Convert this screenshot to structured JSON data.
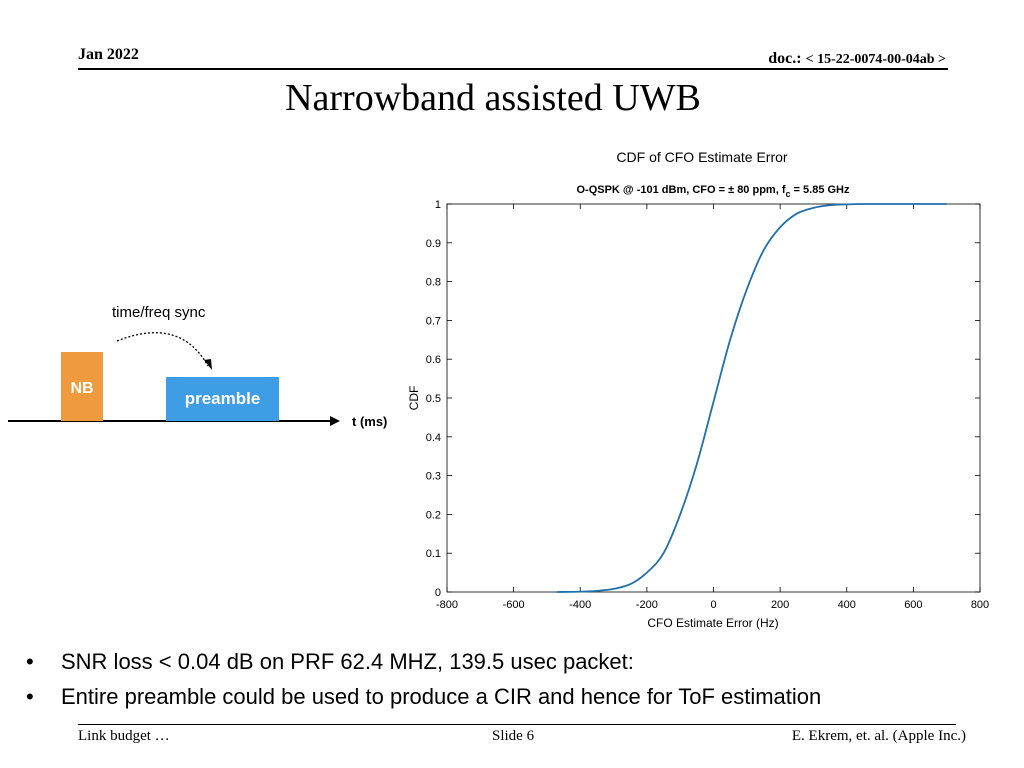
{
  "header": {
    "date": "Jan 2022",
    "doc_prefix": "doc.: ",
    "doc_number": "< 15-22-0074-00-04ab >"
  },
  "title": "Narrowband assisted UWB",
  "diagram": {
    "sync_label": "time/freq sync",
    "nb_label": "NB",
    "preamble_label": "preamble",
    "axis_label": "t (ms)",
    "colors": {
      "nb": "#f09a3e",
      "preamble": "#3f9de6"
    }
  },
  "chart_data": {
    "type": "line",
    "title": "CDF of CFO Estimate Error",
    "subtitle_main": "O-QSPK @ -101 dBm, CFO = ± 80 ppm, f",
    "subtitle_sub": "c",
    "subtitle_tail": " = 5.85 GHz",
    "xlabel": "CFO Estimate Error (Hz)",
    "ylabel": "CDF",
    "xlim": [
      -800,
      800
    ],
    "ylim": [
      0,
      1
    ],
    "xticks": [
      "-800",
      "-600",
      "-400",
      "-200",
      "0",
      "200",
      "400",
      "600",
      "800"
    ],
    "yticks": [
      "0",
      "0.1",
      "0.2",
      "0.3",
      "0.4",
      "0.5",
      "0.6",
      "0.7",
      "0.8",
      "0.9",
      "1"
    ],
    "grid": false,
    "series": [
      {
        "color": "#1f6fae",
        "x": [
          -470,
          -400,
          -350,
          -300,
          -250,
          -200,
          -150,
          -100,
          -50,
          0,
          50,
          100,
          150,
          200,
          250,
          300,
          350,
          400,
          450,
          500,
          600,
          700
        ],
        "y": [
          0.0,
          0.001,
          0.003,
          0.008,
          0.02,
          0.05,
          0.1,
          0.2,
          0.33,
          0.49,
          0.65,
          0.78,
          0.88,
          0.94,
          0.975,
          0.99,
          0.997,
          0.999,
          1.0,
          1.0,
          1.0,
          1.0
        ]
      }
    ]
  },
  "bullets": [
    "SNR loss < 0.04 dB on PRF 62.4 MHZ, 139.5 usec packet:",
    "Entire preamble could be used to produce a CIR and hence for ToF estimation"
  ],
  "bullet_symbol": "•",
  "footer": {
    "left": "Link budget …",
    "center": "Slide 6",
    "right": "E. Ekrem, et. al. (Apple Inc.)"
  }
}
